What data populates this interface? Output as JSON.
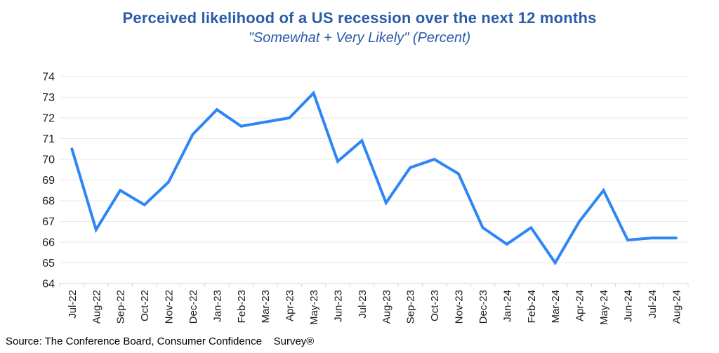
{
  "header": {
    "title": "Perceived likelihood of a US recession over the next 12 months",
    "subtitle": "\"Somewhat + Very Likely\" (Percent)"
  },
  "footer": {
    "source": "Source: The Conference Board, Consumer Confidence    Survey®"
  },
  "colors": {
    "title_text": "#2B5CA9",
    "line": "#2E86F5",
    "gridline": "#E7E7E7",
    "axis": "#D4D4D4",
    "tick_label": "#1A1A1A",
    "source_text": "#000000"
  },
  "chart_data": {
    "type": "line",
    "title": "Perceived likelihood of a US recession over the next 12 months",
    "subtitle": "\"Somewhat + Very Likely\" (Percent)",
    "x": [
      "Jul-22",
      "Aug-22",
      "Sep-22",
      "Oct-22",
      "Nov-22",
      "Dec-22",
      "Jan-23",
      "Feb-23",
      "Mar-23",
      "Apr-23",
      "May-23",
      "Jun-23",
      "Jul-23",
      "Aug-23",
      "Sep-23",
      "Oct-23",
      "Nov-23",
      "Dec-23",
      "Jan-24",
      "Feb-24",
      "Mar-24",
      "Apr-24",
      "May-24",
      "Jun-24",
      "Jul-24",
      "Aug-24"
    ],
    "series": [
      {
        "name": "Somewhat + Very Likely (Percent)",
        "values": [
          70.5,
          66.6,
          68.5,
          67.8,
          68.9,
          71.2,
          72.4,
          71.6,
          71.8,
          72.0,
          73.2,
          69.9,
          70.9,
          67.9,
          69.6,
          70.0,
          69.3,
          66.7,
          65.9,
          66.7,
          65.0,
          67.0,
          68.5,
          66.1,
          66.2,
          66.2
        ]
      }
    ],
    "xlabel": "",
    "ylabel": "",
    "ylim": [
      64,
      74
    ],
    "yticks": [
      64,
      65,
      66,
      67,
      68,
      69,
      70,
      71,
      72,
      73,
      74
    ],
    "grid": true,
    "legend_position": "none",
    "x_tick_rotation_deg": 90
  }
}
